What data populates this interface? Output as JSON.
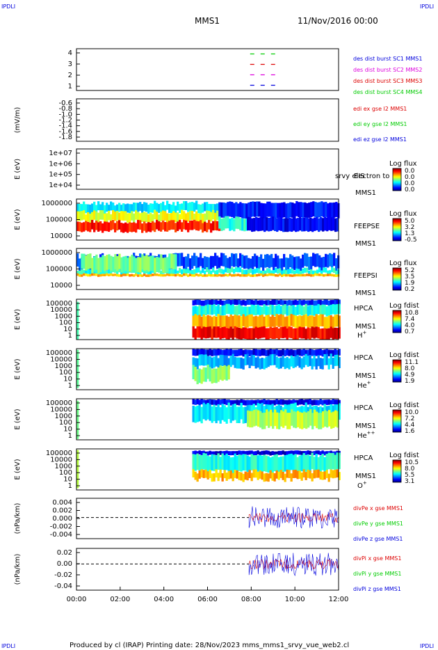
{
  "corner_label": "IPDLI",
  "header": {
    "spacecraft": "MMS1",
    "datetime": "11/Nov/2016 00:00"
  },
  "footer": "Produced by cl (IRAP)   Printing date: 28/Nov/2023   mms_mms1_srvy_vue_web2.cl",
  "time_axis": {
    "ticks": [
      "00:00",
      "02:00",
      "04:00",
      "06:00",
      "08:00",
      "10:00",
      "12:00"
    ],
    "range_hours": [
      0,
      12
    ]
  },
  "colors": {
    "black": "#000000",
    "blue": "#0000dd",
    "green": "#00cc00",
    "red": "#dd0000",
    "magenta": "#dd00dd"
  },
  "chart_data": [
    {
      "type": "line",
      "id": "burst",
      "ylabel": "",
      "yticks": [
        "4",
        "3",
        "2",
        "1"
      ],
      "ylim": [
        0.5,
        4.5
      ],
      "legend": [
        {
          "name": "des dist burst SC1 MMS1",
          "color": "#0000dd"
        },
        {
          "name": "des dist burst SC2 MMS2",
          "color": "#dd00dd"
        },
        {
          "name": "des dist burst SC3 MMS3",
          "color": "#dd0000"
        },
        {
          "name": "des dist burst SC4 MMS4",
          "color": "#00cc00"
        }
      ],
      "series": [
        {
          "name": "des dist burst SC4 MMS4",
          "level": 4,
          "x": [
            7.95,
            9.2
          ],
          "color": "#00cc00"
        },
        {
          "name": "des dist burst SC3 MMS3",
          "level": 3,
          "x": [
            7.95,
            9.2
          ],
          "color": "#dd0000"
        },
        {
          "name": "des dist burst SC2 MMS2",
          "level": 2,
          "x": [
            7.95,
            9.2
          ],
          "color": "#dd00dd"
        },
        {
          "name": "des dist burst SC1 MMS1",
          "level": 1,
          "x": [
            7.95,
            9.2
          ],
          "color": "#0000dd"
        }
      ]
    },
    {
      "type": "line",
      "id": "edi",
      "ylabel": "(mV/m)",
      "yticks": [
        "-0.6",
        "-0.8",
        "-1.0",
        "-1.2",
        "-1.4",
        "-1.6",
        "-1.8"
      ],
      "legend": [
        {
          "name": "edi ex gse l2 MMS1",
          "color": "#dd0000"
        },
        {
          "name": "edi ey gse l2 MMS1",
          "color": "#00cc00"
        },
        {
          "name": "edi ez gse l2 MMS1",
          "color": "#0000dd"
        }
      ]
    },
    {
      "type": "heatmap",
      "id": "eis",
      "ylabel": "E (eV)",
      "yticks": [
        "1e+07",
        "1e+06",
        "1e+05",
        "1e+04"
      ],
      "instrument": "EIS",
      "instrument_extra": "srvy electron to",
      "spacecraft": "MMS1",
      "colorbar": {
        "label": "Log flux",
        "ticks": [
          "0.0",
          "0.0",
          "0.0",
          "0.0"
        ]
      }
    },
    {
      "type": "heatmap",
      "id": "feepse",
      "ylabel": "E (eV)",
      "yticks": [
        "1000000",
        "100000",
        "10000"
      ],
      "instrument": "FEEPSE",
      "spacecraft": "MMS1",
      "colorbar": {
        "label": "Log flux",
        "ticks": [
          "5.0",
          "3.2",
          "1.3",
          "-0.5"
        ]
      }
    },
    {
      "type": "heatmap",
      "id": "feepsi",
      "ylabel": "E (eV)",
      "yticks": [
        "1000000",
        "100000",
        "10000"
      ],
      "instrument": "FEEPSI",
      "spacecraft": "MMS1",
      "colorbar": {
        "label": "Log flux",
        "ticks": [
          "5.2",
          "3.5",
          "1.9",
          "0.2"
        ]
      }
    },
    {
      "type": "heatmap",
      "id": "hpca-h",
      "ylabel": "E (eV)",
      "yticks": [
        "100000",
        "10000",
        "1000",
        "100",
        "10",
        "1"
      ],
      "instrument": "HPCA",
      "spacecraft": "MMS1",
      "species": "H",
      "species_sup": "+",
      "colorbar": {
        "label": "Log fdist",
        "ticks": [
          "10.8",
          "7.4",
          "4.0",
          "0.7"
        ]
      }
    },
    {
      "type": "heatmap",
      "id": "hpca-he",
      "ylabel": "E (eV)",
      "yticks": [
        "100000",
        "10000",
        "1000",
        "100",
        "10",
        "1"
      ],
      "instrument": "HPCA",
      "spacecraft": "MMS1",
      "species": "He",
      "species_sup": "+",
      "colorbar": {
        "label": "Log fdist",
        "ticks": [
          "11.1",
          "8.0",
          "4.9",
          "1.9"
        ]
      }
    },
    {
      "type": "heatmap",
      "id": "hpca-he2",
      "ylabel": "E (eV)",
      "yticks": [
        "100000",
        "10000",
        "1000",
        "100",
        "10",
        "1"
      ],
      "instrument": "HPCA",
      "spacecraft": "MMS1",
      "species": "He",
      "species_sup": "++",
      "colorbar": {
        "label": "Log fdist",
        "ticks": [
          "10.0",
          "7.2",
          "4.4",
          "1.6"
        ]
      }
    },
    {
      "type": "heatmap",
      "id": "hpca-o",
      "ylabel": "E (eV)",
      "yticks": [
        "100000",
        "10000",
        "1000",
        "100",
        "10",
        "1"
      ],
      "instrument": "HPCA",
      "spacecraft": "MMS1",
      "species": "O",
      "species_sup": "+",
      "colorbar": {
        "label": "Log fdist",
        "ticks": [
          "10.5",
          "8.0",
          "5.5",
          "3.1"
        ]
      }
    },
    {
      "type": "line",
      "id": "divpe",
      "ylabel": "(nPa/km)",
      "yticks": [
        "0.004",
        "0.002",
        "0.000",
        "-0.002",
        "-0.004"
      ],
      "ylim": [
        -0.0055,
        0.005
      ],
      "legend": [
        {
          "name": "divPe x gse MMS1",
          "color": "#dd0000"
        },
        {
          "name": "divPe y gse MMS1",
          "color": "#00cc00"
        },
        {
          "name": "divPe z gse MMS1",
          "color": "#0000dd"
        }
      ]
    },
    {
      "type": "line",
      "id": "divpi",
      "ylabel": "(nPa/km)",
      "yticks": [
        "0.02",
        "0.00",
        "-0.02",
        "-0.04"
      ],
      "ylim": [
        -0.047,
        0.028
      ],
      "legend": [
        {
          "name": "divPi x gse MMS1",
          "color": "#dd0000"
        },
        {
          "name": "divPi y gse MMS1",
          "color": "#00cc00"
        },
        {
          "name": "divPi z gse MMS1",
          "color": "#0000dd"
        }
      ]
    }
  ]
}
